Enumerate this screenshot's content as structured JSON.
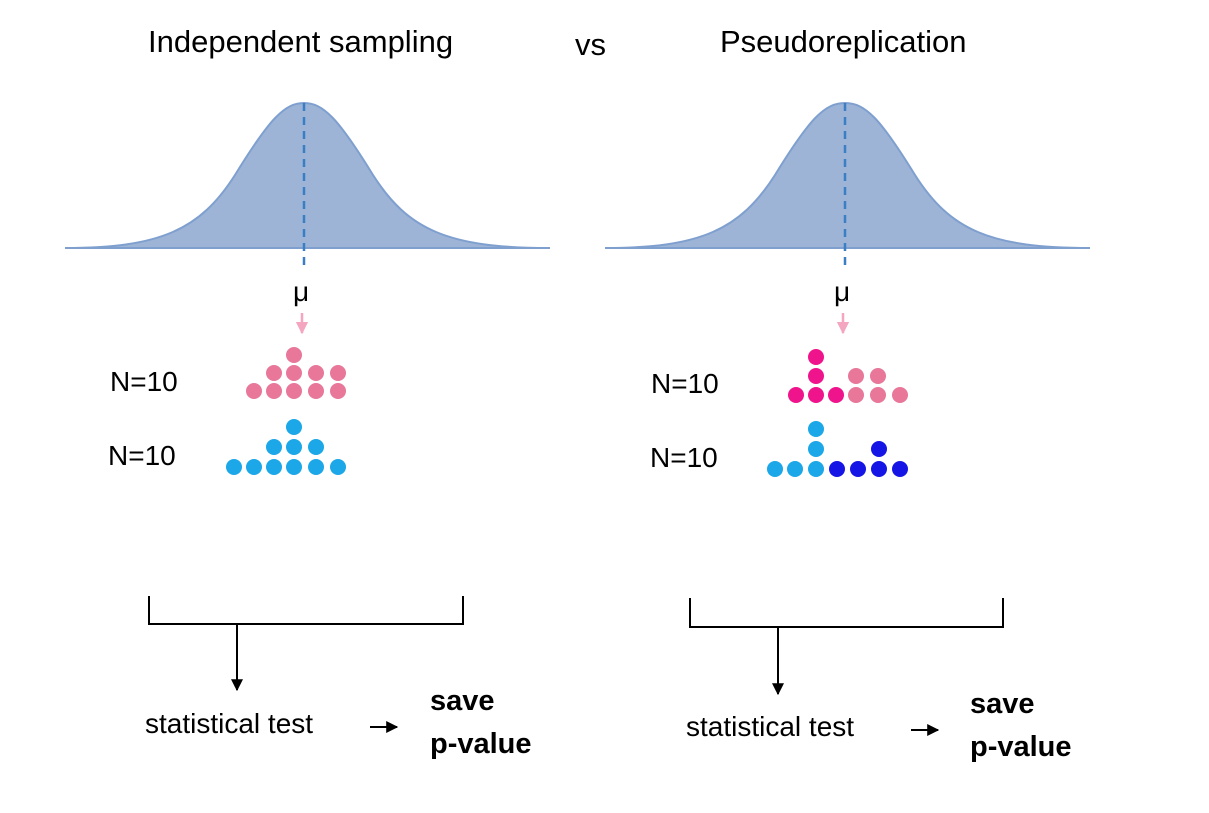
{
  "titles": {
    "left": "Independent sampling",
    "vs": "vs",
    "right": "Pseudoreplication"
  },
  "left_panel": {
    "mu": "μ",
    "group1_label": "N=10",
    "group2_label": "N=10",
    "test_label": "statistical test",
    "save_line1": "save",
    "save_line2": "p-value"
  },
  "right_panel": {
    "mu": "μ",
    "group1_label": "N=10",
    "group2_label": "N=10",
    "test_label": "statistical test",
    "save_line1": "save",
    "save_line2": "p-value"
  },
  "colors": {
    "distribution_fill": "#9db4d6",
    "distribution_edge": "#7fa0cf",
    "mean_line": "#3a7fc4",
    "mu_arrow": "#f4a6c0",
    "pink_light": "#e8779a",
    "pink_dark": "#f0148c",
    "blue_light": "#1ba7e8",
    "blue_dark": "#1515e6",
    "connector": "#000000"
  }
}
